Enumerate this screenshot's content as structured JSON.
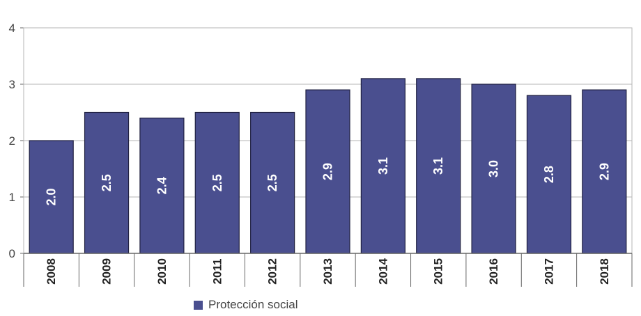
{
  "chart_data": {
    "type": "bar",
    "categories": [
      "2008",
      "2009",
      "2010",
      "2011",
      "2012",
      "2013",
      "2014",
      "2015",
      "2016",
      "2017",
      "2018"
    ],
    "series": [
      {
        "name": "Protección social",
        "values": [
          2.0,
          2.5,
          2.4,
          2.5,
          2.5,
          2.9,
          3.1,
          3.1,
          3.0,
          2.8,
          2.9
        ],
        "labels": [
          "2.0",
          "2.5",
          "2.4",
          "2.5",
          "2.5",
          "2.9",
          "3.1",
          "3.1",
          "3.0",
          "2.8",
          "2.9"
        ],
        "color": "#4a4f8f"
      }
    ],
    "ylim": [
      0,
      4
    ],
    "yticks": [
      0,
      1,
      2,
      3,
      4
    ],
    "grid": true,
    "legend_position": "bottom",
    "title": "",
    "xlabel": "",
    "ylabel": ""
  },
  "colors": {
    "bar": "#4a4f8f",
    "bar_stroke": "#1f2040",
    "grid": "#b5b5b5",
    "axis": "#666666",
    "text": "#444444",
    "data_label": "#ffffff"
  }
}
